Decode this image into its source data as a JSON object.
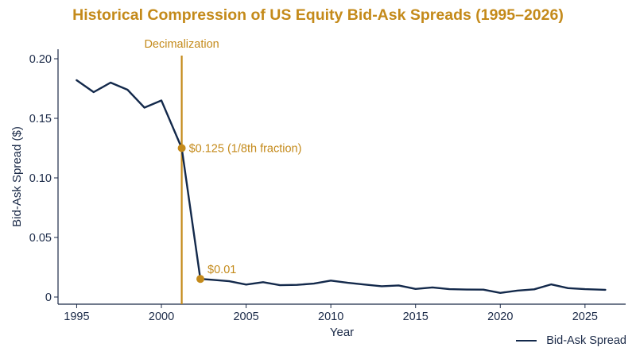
{
  "colors": {
    "line": "#13294b",
    "accent": "#c48a1a",
    "text": "#1b2a48",
    "axis": "#1b2a48"
  },
  "chart_data": {
    "type": "line",
    "title": "Historical Compression of US Equity Bid-Ask Spreads (1995–2026)",
    "xlabel": "Year",
    "ylabel": "Bid-Ask Spread ($)",
    "xlim": [
      1993.9,
      2027.4
    ],
    "ylim": [
      -0.006,
      0.208
    ],
    "xticks": [
      1995,
      2000,
      2005,
      2010,
      2015,
      2020,
      2025
    ],
    "yticks": [
      0,
      0.05,
      0.1,
      0.15,
      0.2
    ],
    "ytick_labels": [
      "0",
      "0.05",
      "0.10",
      "0.15",
      "0.20"
    ],
    "grid": false,
    "legend_position": "bottom-right",
    "series": [
      {
        "name": "Bid-Ask Spread",
        "x": [
          1995,
          1996,
          1997,
          1998,
          1999,
          2000,
          2001.2,
          2002.3,
          2003,
          2004,
          2005,
          2006,
          2007,
          2008,
          2009,
          2010,
          2011,
          2012,
          2013,
          2014,
          2015,
          2016,
          2017,
          2018,
          2019,
          2020,
          2021,
          2022,
          2023,
          2024,
          2025,
          2026.2
        ],
        "values": [
          0.182,
          0.172,
          0.18,
          0.174,
          0.159,
          0.165,
          0.125,
          0.0152,
          0.0145,
          0.0133,
          0.0105,
          0.0125,
          0.0099,
          0.0102,
          0.0113,
          0.0138,
          0.0119,
          0.0105,
          0.0091,
          0.0097,
          0.0068,
          0.0081,
          0.0066,
          0.0063,
          0.0062,
          0.0035,
          0.0054,
          0.0065,
          0.0106,
          0.0075,
          0.0066,
          0.0061
        ]
      }
    ],
    "vline": {
      "x": 2001.2,
      "label": "Decimalization"
    },
    "annotations": [
      {
        "x": 2001.2,
        "y": 0.125,
        "label": "$0.125 (1/8th fraction)"
      },
      {
        "x": 2002.3,
        "y": 0.0152,
        "label": "$0.01"
      }
    ]
  }
}
